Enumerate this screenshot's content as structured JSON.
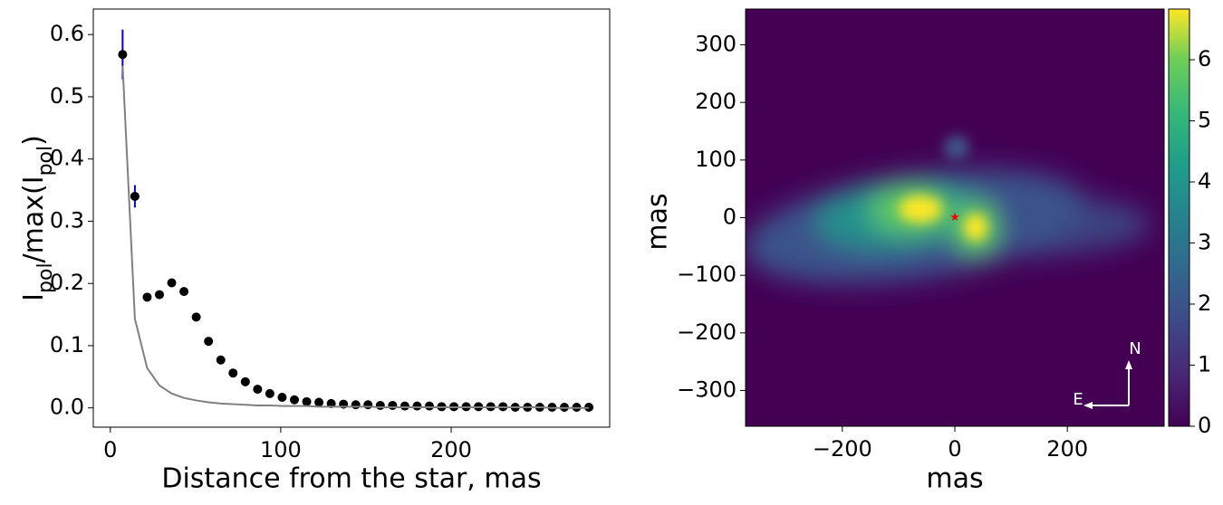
{
  "chart_data": [
    {
      "type": "scatter",
      "xlabel": "Distance from the star, mas",
      "ylabel_parts": [
        "I",
        "pol",
        "/max(I",
        "pol",
        ")"
      ],
      "x": [
        7.2,
        14.4,
        21.6,
        28.8,
        36.0,
        43.2,
        50.4,
        57.6,
        64.8,
        72.0,
        79.2,
        86.4,
        93.6,
        100.8,
        108.0,
        115.2,
        122.4,
        129.6,
        136.8,
        144.0,
        151.2,
        158.4,
        165.6,
        172.8,
        180.0,
        187.2,
        194.4,
        201.6,
        208.8,
        216.0,
        223.2,
        230.4,
        237.6,
        244.8,
        252.0,
        259.2,
        266.4,
        273.6,
        280.8
      ],
      "series": [
        {
          "style": "markers",
          "color": "#000000",
          "error_color": "#0000cc",
          "values": [
            0.568,
            0.34,
            0.178,
            0.182,
            0.201,
            0.187,
            0.146,
            0.107,
            0.077,
            0.056,
            0.042,
            0.03,
            0.023,
            0.017,
            0.013,
            0.01,
            0.009,
            0.007,
            0.006,
            0.005,
            0.005,
            0.004,
            0.004,
            0.003,
            0.003,
            0.003,
            0.002,
            0.002,
            0.002,
            0.002,
            0.002,
            0.002,
            0.001,
            0.001,
            0.001,
            0.001,
            0.001,
            0.001,
            0.001
          ],
          "errors": [
            0.04,
            0.018,
            0.003,
            0.003,
            0.003,
            0.003,
            0.003,
            0.003,
            0.002,
            0.002,
            0.002,
            0.002,
            0.002,
            0.002,
            0.002,
            0.002,
            0.002,
            0.002,
            0.002,
            0.002,
            0.002,
            0.002,
            0.002,
            0.002,
            0.002,
            0.002,
            0.002,
            0.002,
            0.002,
            0.002,
            0.002,
            0.002,
            0.002,
            0.002,
            0.002,
            0.002,
            0.002,
            0.002,
            0.002
          ]
        },
        {
          "style": "line",
          "color": "#808080",
          "values": [
            0.55,
            0.143,
            0.064,
            0.036,
            0.023,
            0.016,
            0.012,
            0.009,
            0.007,
            0.006,
            0.005,
            0.004,
            0.004,
            0.003,
            0.003,
            0.003,
            0.002,
            0.002,
            0.002,
            0.002,
            0.002,
            0.001,
            0.001,
            0.001,
            0.001,
            0.001,
            0.001,
            0.001,
            0.001,
            0.001,
            0.001,
            0.001,
            0.001,
            0.001,
            0.001,
            0.0,
            0.0,
            0.0,
            0.0
          ]
        }
      ],
      "xlim": [
        -10,
        293
      ],
      "ylim": [
        -0.031,
        0.641
      ],
      "xticks": [
        0,
        100,
        200
      ],
      "yticks": [
        {
          "value": 0,
          "label": "0.0"
        },
        0.1,
        0.2,
        0.3,
        0.4,
        0.5,
        0.6
      ]
    },
    {
      "type": "image",
      "xlabel": "mas",
      "ylabel": "mas",
      "xlim": [
        -372,
        372
      ],
      "ylim": [
        -362,
        362
      ],
      "xticks": [
        {
          "value": -200,
          "label": "−200"
        },
        0,
        200
      ],
      "yticks": [
        {
          "value": -300,
          "label": "−300"
        },
        {
          "value": -200,
          "label": "−200"
        },
        {
          "value": -100,
          "label": "−100"
        },
        0,
        100,
        200,
        300
      ],
      "colormap": "viridis",
      "clim": [
        0,
        6.83
      ],
      "cticks": [
        0,
        1,
        2,
        3,
        4,
        5,
        6
      ],
      "star": {
        "x": 0,
        "y": 0,
        "color": "#ff0000"
      },
      "compass": {
        "north": "N",
        "east": "E"
      }
    }
  ]
}
